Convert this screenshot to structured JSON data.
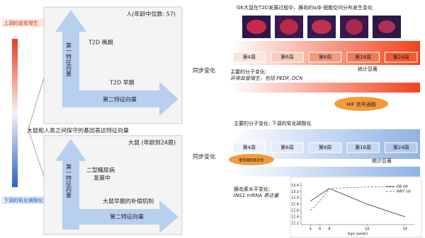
{
  "legend_bar": {
    "top": "上调的血管增生",
    "bottom": "下调的氧化磷酸化"
  },
  "conserved_label": "大鼠和人类之间保守的基因表达特征向量",
  "human_panel": {
    "title": "人(年龄中位数: 57)",
    "late": "T2D 晚期",
    "early": "T2D 早期",
    "vector1": "第一特征向量",
    "vector2": "第二特征向量"
  },
  "rat_panel": {
    "title": "大鼠 (年龄到24周)",
    "developing": [
      "二型糖尿病",
      "发展中"
    ],
    "compensation": "大鼠早期的补偿机制",
    "vector1": "第一特征向量",
    "vector2": "第二特征向量"
  },
  "top_right": {
    "title": "GK大鼠在T2D发展过程中，胰岛的α/β-细胞空间分布发生变化",
    "weeks": [
      "第4周",
      "第6周",
      "第8周",
      "第16周",
      "第24周"
    ],
    "significant": "统计显著",
    "sync": "同步变化",
    "molecular": [
      "主要的分子变化:",
      "异常血管增生，包括 PEDF, DCN"
    ],
    "pathway": "HIF 信号通路"
  },
  "bottom_right": {
    "molecular": "主要的分子变化:  下调的氧化磷酸化",
    "weeks": [
      "第4周",
      "第6周",
      "第8周",
      "第16周",
      "第24周"
    ],
    "significant": "统计显著",
    "sync": "同步变化",
    "glucose": "葡萄糖耐量改变",
    "insulin": [
      "胰岛素水平变化:",
      "INS1 mRNA 表达量"
    ]
  },
  "chart_data": {
    "type": "line",
    "x_label": "Age (week)",
    "x": [
      4,
      6,
      8,
      16,
      24
    ],
    "xlim": [
      2,
      26
    ],
    "xticks": [
      4,
      6,
      8,
      16,
      24
    ],
    "ylim": [
      12.15,
      13.5
    ],
    "yticks": [
      12.2,
      12.4,
      12.6,
      12.8,
      {
        "value": 13,
        "label": "13.0"
      },
      13.2,
      13.4
    ],
    "series": [
      {
        "name": "GK rat",
        "color": "#444444",
        "dash": false,
        "values": [
          12.9,
          13.1,
          13.3,
          12.8,
          12.4
        ]
      },
      {
        "name": "WKY rat",
        "color": "#7a7a7a",
        "dash": true,
        "values": [
          12.6,
          12.9,
          13.3,
          13.35,
          13.35
        ]
      }
    ]
  }
}
